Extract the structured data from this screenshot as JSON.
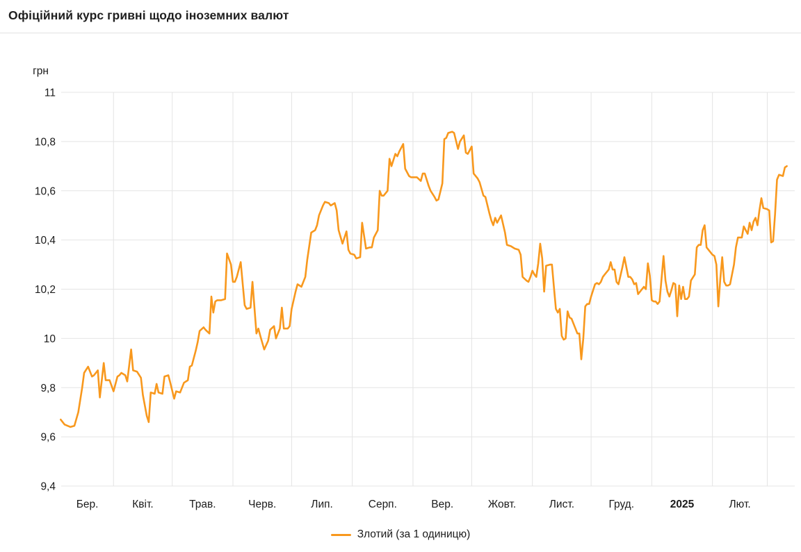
{
  "page": {
    "title": "Офіційний курс гривні щодо іноземних валют"
  },
  "legend": {
    "items": [
      {
        "label": "Злотий (за 1 одиницю)",
        "color": "#f8981d"
      }
    ]
  },
  "chart_data": {
    "type": "line",
    "title": "Офіційний курс гривні щодо іноземних валют",
    "grid_color": "#e4e4e4",
    "y_axis": {
      "unit": "грн",
      "min": 9.4,
      "max": 11,
      "tick_values": [
        11,
        10.8,
        10.6,
        10.4,
        10.2,
        10,
        9.8,
        9.6,
        9.4
      ],
      "tick_labels": [
        "11",
        "10,8",
        "10,6",
        "10,4",
        "10,2",
        "10",
        "9,8",
        "9,6",
        "9,4"
      ]
    },
    "x_axis": {
      "description": "days since 1 March 2024, monthly gridlines",
      "month_start_days": [
        0,
        31,
        61,
        92,
        122,
        153,
        184,
        214,
        245,
        275,
        306,
        337,
        365
      ],
      "month_labels": [
        {
          "text": "Бер.",
          "bold": false
        },
        {
          "text": "Квіт.",
          "bold": false
        },
        {
          "text": "Трав.",
          "bold": false
        },
        {
          "text": "Черв.",
          "bold": false
        },
        {
          "text": "Лип.",
          "bold": false
        },
        {
          "text": "Серп.",
          "bold": false
        },
        {
          "text": "Вер.",
          "bold": false
        },
        {
          "text": "Жовт.",
          "bold": false
        },
        {
          "text": "Лист.",
          "bold": false
        },
        {
          "text": "Груд.",
          "bold": false
        },
        {
          "text": "2025",
          "bold": true
        },
        {
          "text": "Лют.",
          "bold": false
        }
      ]
    },
    "series": [
      {
        "name": "Злотий (за 1 одиницю)",
        "color": "#f8981d",
        "points": [
          [
            4,
            9.67
          ],
          [
            6,
            9.65
          ],
          [
            9,
            9.64
          ],
          [
            11,
            9.645
          ],
          [
            13,
            9.7
          ],
          [
            15,
            9.8
          ],
          [
            16,
            9.86
          ],
          [
            18,
            9.885
          ],
          [
            20,
            9.845
          ],
          [
            21,
            9.85
          ],
          [
            23,
            9.87
          ],
          [
            24,
            9.76
          ],
          [
            26,
            9.9
          ],
          [
            27,
            9.83
          ],
          [
            29,
            9.83
          ],
          [
            31,
            9.785
          ],
          [
            33,
            9.845
          ],
          [
            34,
            9.85
          ],
          [
            35,
            9.86
          ],
          [
            37,
            9.85
          ],
          [
            38,
            9.825
          ],
          [
            40,
            9.955
          ],
          [
            41,
            9.87
          ],
          [
            43,
            9.865
          ],
          [
            45,
            9.84
          ],
          [
            46,
            9.77
          ],
          [
            48,
            9.685
          ],
          [
            49,
            9.66
          ],
          [
            50,
            9.78
          ],
          [
            52,
            9.775
          ],
          [
            53,
            9.815
          ],
          [
            54,
            9.78
          ],
          [
            56,
            9.775
          ],
          [
            57,
            9.845
          ],
          [
            59,
            9.85
          ],
          [
            60,
            9.82
          ],
          [
            62,
            9.755
          ],
          [
            63,
            9.785
          ],
          [
            65,
            9.78
          ],
          [
            67,
            9.82
          ],
          [
            69,
            9.83
          ],
          [
            70,
            9.885
          ],
          [
            71,
            9.89
          ],
          [
            72,
            9.92
          ],
          [
            73,
            9.95
          ],
          [
            74,
            9.985
          ],
          [
            75,
            10.03
          ],
          [
            77,
            10.045
          ],
          [
            78,
            10.035
          ],
          [
            80,
            10.02
          ],
          [
            81,
            10.17
          ],
          [
            82,
            10.105
          ],
          [
            83,
            10.15
          ],
          [
            84,
            10.155
          ],
          [
            86,
            10.155
          ],
          [
            88,
            10.16
          ],
          [
            89,
            10.345
          ],
          [
            91,
            10.3
          ],
          [
            92,
            10.23
          ],
          [
            93,
            10.23
          ],
          [
            94,
            10.25
          ],
          [
            96,
            10.31
          ],
          [
            97,
            10.22
          ],
          [
            98,
            10.135
          ],
          [
            99,
            10.12
          ],
          [
            101,
            10.125
          ],
          [
            102,
            10.23
          ],
          [
            104,
            10.02
          ],
          [
            105,
            10.04
          ],
          [
            106,
            10.01
          ],
          [
            108,
            9.955
          ],
          [
            110,
            9.99
          ],
          [
            111,
            10.035
          ],
          [
            113,
            10.05
          ],
          [
            114,
            10.0
          ],
          [
            116,
            10.04
          ],
          [
            117,
            10.125
          ],
          [
            118,
            10.04
          ],
          [
            120,
            10.04
          ],
          [
            121,
            10.05
          ],
          [
            122,
            10.12
          ],
          [
            124,
            10.19
          ],
          [
            125,
            10.22
          ],
          [
            127,
            10.21
          ],
          [
            129,
            10.25
          ],
          [
            130,
            10.32
          ],
          [
            132,
            10.43
          ],
          [
            134,
            10.44
          ],
          [
            135,
            10.46
          ],
          [
            136,
            10.5
          ],
          [
            138,
            10.54
          ],
          [
            139,
            10.555
          ],
          [
            141,
            10.55
          ],
          [
            142,
            10.54
          ],
          [
            144,
            10.55
          ],
          [
            145,
            10.52
          ],
          [
            146,
            10.44
          ],
          [
            148,
            10.385
          ],
          [
            150,
            10.435
          ],
          [
            151,
            10.36
          ],
          [
            152,
            10.345
          ],
          [
            154,
            10.34
          ],
          [
            155,
            10.325
          ],
          [
            157,
            10.33
          ],
          [
            158,
            10.47
          ],
          [
            160,
            10.365
          ],
          [
            162,
            10.37
          ],
          [
            163,
            10.37
          ],
          [
            164,
            10.41
          ],
          [
            166,
            10.44
          ],
          [
            167,
            10.6
          ],
          [
            168,
            10.58
          ],
          [
            169,
            10.58
          ],
          [
            171,
            10.6
          ],
          [
            172,
            10.73
          ],
          [
            173,
            10.7
          ],
          [
            175,
            10.75
          ],
          [
            176,
            10.74
          ],
          [
            177,
            10.76
          ],
          [
            179,
            10.79
          ],
          [
            180,
            10.69
          ],
          [
            182,
            10.66
          ],
          [
            183,
            10.655
          ],
          [
            185,
            10.655
          ],
          [
            186,
            10.655
          ],
          [
            188,
            10.64
          ],
          [
            189,
            10.67
          ],
          [
            190,
            10.67
          ],
          [
            192,
            10.62
          ],
          [
            193,
            10.6
          ],
          [
            195,
            10.575
          ],
          [
            196,
            10.56
          ],
          [
            197,
            10.565
          ],
          [
            199,
            10.63
          ],
          [
            200,
            10.81
          ],
          [
            201,
            10.815
          ],
          [
            202,
            10.835
          ],
          [
            204,
            10.84
          ],
          [
            205,
            10.835
          ],
          [
            207,
            10.77
          ],
          [
            208,
            10.8
          ],
          [
            210,
            10.825
          ],
          [
            211,
            10.755
          ],
          [
            212,
            10.75
          ],
          [
            214,
            10.78
          ],
          [
            215,
            10.67
          ],
          [
            217,
            10.65
          ],
          [
            218,
            10.635
          ],
          [
            220,
            10.58
          ],
          [
            221,
            10.575
          ],
          [
            223,
            10.51
          ],
          [
            224,
            10.48
          ],
          [
            225,
            10.46
          ],
          [
            226,
            10.49
          ],
          [
            227,
            10.47
          ],
          [
            229,
            10.5
          ],
          [
            231,
            10.43
          ],
          [
            232,
            10.38
          ],
          [
            234,
            10.375
          ],
          [
            236,
            10.365
          ],
          [
            238,
            10.36
          ],
          [
            239,
            10.34
          ],
          [
            240,
            10.25
          ],
          [
            242,
            10.235
          ],
          [
            243,
            10.23
          ],
          [
            244,
            10.25
          ],
          [
            245,
            10.275
          ],
          [
            246,
            10.26
          ],
          [
            247,
            10.25
          ],
          [
            248,
            10.305
          ],
          [
            249,
            10.385
          ],
          [
            250,
            10.325
          ],
          [
            251,
            10.19
          ],
          [
            252,
            10.295
          ],
          [
            254,
            10.3
          ],
          [
            255,
            10.3
          ],
          [
            256,
            10.21
          ],
          [
            257,
            10.12
          ],
          [
            258,
            10.105
          ],
          [
            259,
            10.12
          ],
          [
            260,
            10.01
          ],
          [
            261,
            9.995
          ],
          [
            262,
            10.0
          ],
          [
            263,
            10.11
          ],
          [
            264,
            10.085
          ],
          [
            265,
            10.08
          ],
          [
            267,
            10.04
          ],
          [
            268,
            10.02
          ],
          [
            269,
            10.02
          ],
          [
            270,
            9.915
          ],
          [
            271,
            10.0
          ],
          [
            272,
            10.13
          ],
          [
            273,
            10.14
          ],
          [
            274,
            10.14
          ],
          [
            275,
            10.17
          ],
          [
            276,
            10.195
          ],
          [
            277,
            10.22
          ],
          [
            278,
            10.225
          ],
          [
            279,
            10.22
          ],
          [
            280,
            10.23
          ],
          [
            281,
            10.25
          ],
          [
            282,
            10.26
          ],
          [
            284,
            10.28
          ],
          [
            285,
            10.31
          ],
          [
            286,
            10.28
          ],
          [
            287,
            10.28
          ],
          [
            288,
            10.23
          ],
          [
            289,
            10.22
          ],
          [
            291,
            10.29
          ],
          [
            292,
            10.33
          ],
          [
            293,
            10.29
          ],
          [
            294,
            10.25
          ],
          [
            295,
            10.25
          ],
          [
            296,
            10.24
          ],
          [
            297,
            10.22
          ],
          [
            298,
            10.225
          ],
          [
            299,
            10.18
          ],
          [
            301,
            10.2
          ],
          [
            302,
            10.21
          ],
          [
            303,
            10.2
          ],
          [
            304,
            10.305
          ],
          [
            305,
            10.255
          ],
          [
            306,
            10.155
          ],
          [
            307,
            10.15
          ],
          [
            308,
            10.15
          ],
          [
            309,
            10.14
          ],
          [
            310,
            10.15
          ],
          [
            312,
            10.335
          ],
          [
            313,
            10.235
          ],
          [
            314,
            10.19
          ],
          [
            315,
            10.17
          ],
          [
            316,
            10.195
          ],
          [
            317,
            10.225
          ],
          [
            318,
            10.22
          ],
          [
            319,
            10.09
          ],
          [
            320,
            10.215
          ],
          [
            321,
            10.16
          ],
          [
            322,
            10.21
          ],
          [
            323,
            10.16
          ],
          [
            324,
            10.16
          ],
          [
            325,
            10.17
          ],
          [
            326,
            10.235
          ],
          [
            328,
            10.26
          ],
          [
            329,
            10.37
          ],
          [
            330,
            10.38
          ],
          [
            331,
            10.38
          ],
          [
            332,
            10.44
          ],
          [
            333,
            10.46
          ],
          [
            334,
            10.37
          ],
          [
            335,
            10.36
          ],
          [
            336,
            10.35
          ],
          [
            337,
            10.34
          ],
          [
            338,
            10.335
          ],
          [
            339,
            10.3
          ],
          [
            340,
            10.13
          ],
          [
            341,
            10.24
          ],
          [
            342,
            10.33
          ],
          [
            343,
            10.23
          ],
          [
            344,
            10.215
          ],
          [
            345,
            10.215
          ],
          [
            346,
            10.22
          ],
          [
            347,
            10.26
          ],
          [
            348,
            10.3
          ],
          [
            349,
            10.37
          ],
          [
            350,
            10.41
          ],
          [
            351,
            10.41
          ],
          [
            352,
            10.41
          ],
          [
            353,
            10.455
          ],
          [
            355,
            10.425
          ],
          [
            356,
            10.47
          ],
          [
            357,
            10.44
          ],
          [
            358,
            10.475
          ],
          [
            359,
            10.49
          ],
          [
            360,
            10.46
          ],
          [
            361,
            10.52
          ],
          [
            362,
            10.57
          ],
          [
            363,
            10.53
          ],
          [
            365,
            10.525
          ],
          [
            366,
            10.52
          ],
          [
            367,
            10.39
          ],
          [
            368,
            10.395
          ],
          [
            369,
            10.505
          ],
          [
            370,
            10.645
          ],
          [
            371,
            10.665
          ],
          [
            373,
            10.66
          ],
          [
            374,
            10.695
          ],
          [
            375,
            10.7
          ]
        ]
      }
    ]
  }
}
